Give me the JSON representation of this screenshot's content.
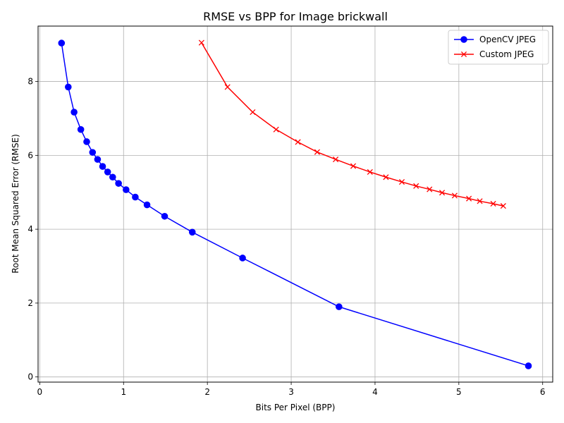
{
  "chart_data": {
    "type": "line",
    "title": "RMSE vs BPP for Image brickwall",
    "xlabel": "Bits Per Pixel (BPP)",
    "ylabel": "Root Mean Squared Error (RMSE)",
    "xlim": [
      -0.02,
      6.12
    ],
    "ylim": [
      -0.14,
      9.5
    ],
    "xticks": [
      0,
      1,
      2,
      3,
      4,
      5,
      6
    ],
    "yticks": [
      0,
      2,
      4,
      6,
      8
    ],
    "grid": true,
    "legend_position": "top-right",
    "series": [
      {
        "name": "OpenCV JPEG",
        "color": "#0000ff",
        "marker": "circle",
        "x": [
          0.26,
          0.34,
          0.41,
          0.49,
          0.56,
          0.63,
          0.69,
          0.75,
          0.81,
          0.87,
          0.94,
          1.03,
          1.14,
          1.28,
          1.49,
          1.82,
          2.42,
          3.57,
          5.83
        ],
        "y": [
          9.04,
          7.85,
          7.17,
          6.7,
          6.37,
          6.08,
          5.89,
          5.7,
          5.55,
          5.41,
          5.24,
          5.07,
          4.87,
          4.66,
          4.35,
          3.92,
          3.22,
          1.9,
          0.3
        ]
      },
      {
        "name": "Custom JPEG",
        "color": "#ff0000",
        "marker": "x",
        "x": [
          1.93,
          2.24,
          2.54,
          2.82,
          3.08,
          3.31,
          3.53,
          3.74,
          3.94,
          4.13,
          4.32,
          4.49,
          4.65,
          4.8,
          4.95,
          5.12,
          5.25,
          5.41,
          5.53
        ],
        "y": [
          9.05,
          7.85,
          7.17,
          6.7,
          6.36,
          6.09,
          5.89,
          5.71,
          5.55,
          5.41,
          5.28,
          5.17,
          5.08,
          4.99,
          4.91,
          4.83,
          4.76,
          4.69,
          4.63
        ]
      }
    ]
  }
}
